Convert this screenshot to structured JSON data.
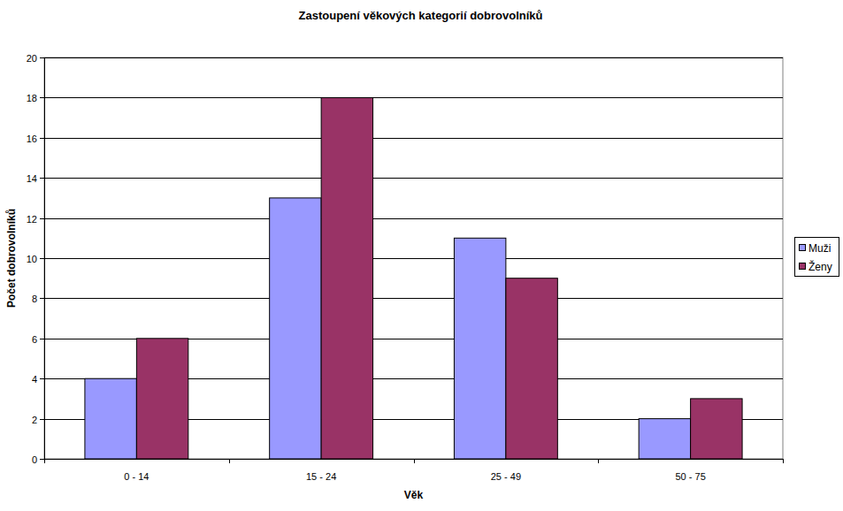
{
  "chart_data": {
    "type": "bar",
    "title": "Zastoupení věkových kategorií dobrovolníků",
    "x_label": "Věk",
    "y_label": "Počet dobrovolníků",
    "categories": [
      "0 - 14",
      "15 - 24",
      "25 - 49",
      "50 - 75"
    ],
    "series": [
      {
        "name": "Muži",
        "color": "#9999ff",
        "values": [
          4,
          13,
          11,
          2
        ]
      },
      {
        "name": "Ženy",
        "color": "#993366",
        "values": [
          6,
          18,
          9,
          3
        ]
      }
    ],
    "ylim": [
      0,
      20
    ],
    "yticks": [
      0,
      2,
      4,
      6,
      8,
      10,
      12,
      14,
      16,
      18,
      20
    ],
    "grid": true,
    "legend": "right"
  }
}
